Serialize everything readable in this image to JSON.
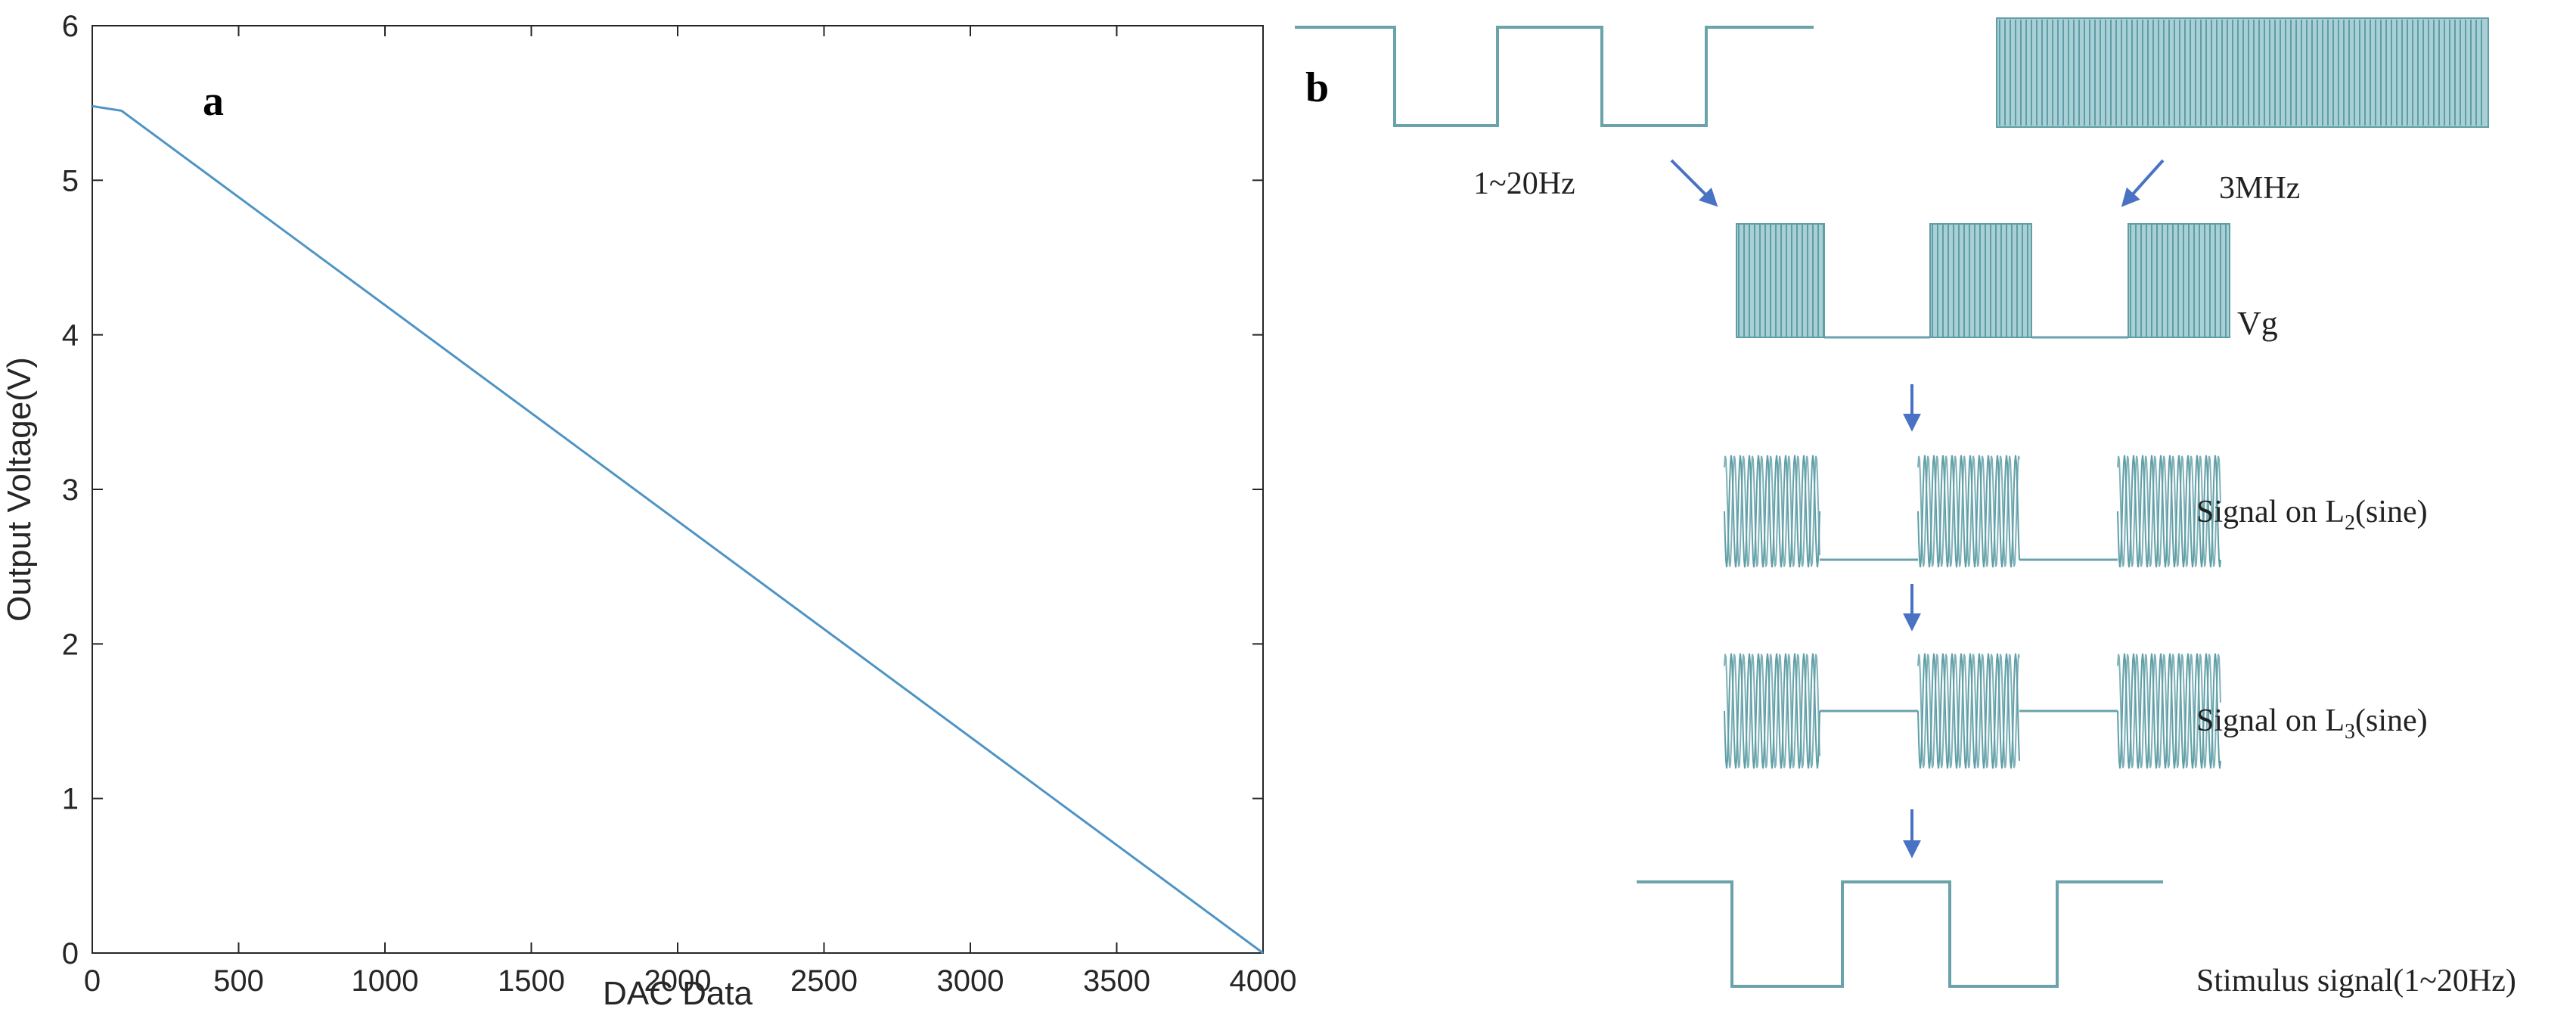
{
  "chart_data": {
    "type": "line",
    "panel_label": "a",
    "xlabel": "DAC Data",
    "ylabel": "Output Voltage(V)",
    "xlim": [
      0,
      4000
    ],
    "ylim": [
      0,
      6
    ],
    "x_ticks": [
      0,
      500,
      1000,
      1500,
      2000,
      2500,
      3000,
      3500,
      4000
    ],
    "y_ticks": [
      0,
      1,
      2,
      3,
      4,
      5,
      6
    ],
    "grid": false,
    "series": [
      {
        "x": [
          0,
          100,
          4000
        ],
        "y": [
          5.48,
          5.45,
          0.0
        ],
        "color": "#4f94c4"
      }
    ]
  },
  "diagram": {
    "panel_label": "b",
    "label_low_freq": "1~20Hz",
    "label_high_freq": "3MHz",
    "label_vg": "Vg",
    "label_l2_prefix": "Signal on L",
    "label_l2_sub": "2",
    "label_l2_suffix": "(sine)",
    "label_l3_prefix": "Signal on L",
    "label_l3_sub": "3",
    "label_l3_suffix": "(sine)",
    "label_stimulus": "Stimulus signal(1~20Hz)",
    "colors": {
      "wave": "#5f9ea6",
      "wave_fill": "#a9d0d6",
      "arrow": "#4a72c4",
      "line": "#6aa3ab"
    }
  }
}
